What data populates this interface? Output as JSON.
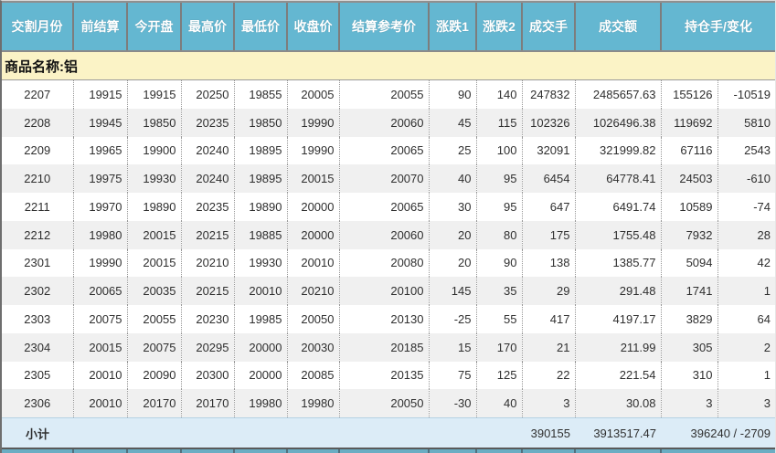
{
  "colors": {
    "header_bg": "#64b7d1",
    "product_row_bg": "#fbf3c6",
    "subtotal_row_bg": "#dcecf7",
    "row_alt_bg": "#f0f0f0",
    "strip_bg": "#6badc3"
  },
  "table": {
    "columns": [
      "交割月份",
      "前结算",
      "今开盘",
      "最高价",
      "最低价",
      "收盘价",
      "结算参考价",
      "涨跌1",
      "涨跌2",
      "成交手",
      "成交额",
      "持仓手/变化"
    ],
    "product_label": "商品名称:铝",
    "rows": [
      [
        "2207",
        "19915",
        "19915",
        "20250",
        "19855",
        "20005",
        "20055",
        "90",
        "140",
        "247832",
        "2485657.63",
        "155126",
        "-10519"
      ],
      [
        "2208",
        "19945",
        "19850",
        "20235",
        "19850",
        "19990",
        "20060",
        "45",
        "115",
        "102326",
        "1026496.38",
        "119692",
        "5810"
      ],
      [
        "2209",
        "19965",
        "19900",
        "20240",
        "19895",
        "19990",
        "20065",
        "25",
        "100",
        "32091",
        "321999.82",
        "67116",
        "2543"
      ],
      [
        "2210",
        "19975",
        "19930",
        "20240",
        "19895",
        "20015",
        "20070",
        "40",
        "95",
        "6454",
        "64778.41",
        "24503",
        "-610"
      ],
      [
        "2211",
        "19970",
        "19890",
        "20235",
        "19890",
        "20000",
        "20065",
        "30",
        "95",
        "647",
        "6491.74",
        "10589",
        "-74"
      ],
      [
        "2212",
        "19980",
        "20015",
        "20215",
        "19885",
        "20000",
        "20060",
        "20",
        "80",
        "175",
        "1755.48",
        "7932",
        "28"
      ],
      [
        "2301",
        "19990",
        "20015",
        "20210",
        "19930",
        "20010",
        "20080",
        "20",
        "90",
        "138",
        "1385.77",
        "5094",
        "42"
      ],
      [
        "2302",
        "20065",
        "20035",
        "20215",
        "20010",
        "20210",
        "20100",
        "145",
        "35",
        "29",
        "291.48",
        "1741",
        "1"
      ],
      [
        "2303",
        "20075",
        "20055",
        "20230",
        "19985",
        "20050",
        "20130",
        "-25",
        "55",
        "417",
        "4197.17",
        "3829",
        "64"
      ],
      [
        "2304",
        "20015",
        "20075",
        "20295",
        "20000",
        "20030",
        "20185",
        "15",
        "170",
        "21",
        "211.99",
        "305",
        "2"
      ],
      [
        "2305",
        "20010",
        "20090",
        "20300",
        "20000",
        "20085",
        "20135",
        "75",
        "125",
        "22",
        "221.54",
        "310",
        "1"
      ],
      [
        "2306",
        "20010",
        "20170",
        "20170",
        "19980",
        "19980",
        "20050",
        "-30",
        "40",
        "3",
        "30.08",
        "3",
        "3"
      ]
    ],
    "subtotal": {
      "label": "小计",
      "volume": "390155",
      "turnover": "3913517.47",
      "open_interest_change": "396240 / -2709"
    }
  }
}
